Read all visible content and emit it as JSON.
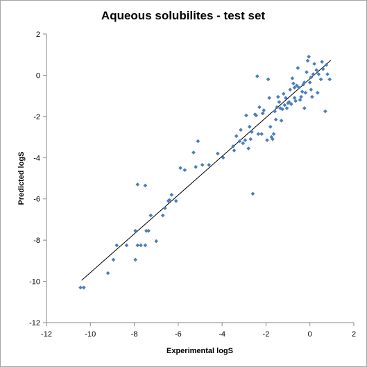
{
  "chart_data": {
    "type": "scatter",
    "title": "Aqueous solubilites - test set",
    "xlabel": "Experimental logS",
    "ylabel": "Predicted logS",
    "xlim": [
      -12,
      2
    ],
    "ylim": [
      -12,
      2
    ],
    "x_ticks": [
      -12,
      -10,
      -8,
      -6,
      -4,
      -2,
      0,
      2
    ],
    "y_ticks": [
      -12,
      -10,
      -8,
      -6,
      -4,
      -2,
      0,
      2
    ],
    "grid": false,
    "legend": "none",
    "marker_color": "#4a7ebb",
    "trendline": {
      "x": [
        -10.4,
        0.95
      ],
      "y": [
        -9.95,
        0.72
      ]
    },
    "points": [
      [
        -10.45,
        -10.3
      ],
      [
        -10.3,
        -10.3
      ],
      [
        -9.2,
        -9.6
      ],
      [
        -8.95,
        -8.95
      ],
      [
        -8.8,
        -8.25
      ],
      [
        -8.35,
        -8.25
      ],
      [
        -7.95,
        -7.55
      ],
      [
        -7.95,
        -8.95
      ],
      [
        -7.85,
        -8.25
      ],
      [
        -7.85,
        -5.3
      ],
      [
        -7.7,
        -8.25
      ],
      [
        -7.5,
        -8.25
      ],
      [
        -7.5,
        -5.35
      ],
      [
        -7.45,
        -7.55
      ],
      [
        -7.35,
        -7.55
      ],
      [
        -7.25,
        -6.8
      ],
      [
        -7.0,
        -8.05
      ],
      [
        -6.7,
        -6.8
      ],
      [
        -6.6,
        -6.45
      ],
      [
        -6.45,
        -6.1
      ],
      [
        -6.4,
        -6.05
      ],
      [
        -6.3,
        -5.8
      ],
      [
        -6.1,
        -6.1
      ],
      [
        -5.9,
        -4.5
      ],
      [
        -5.7,
        -4.6
      ],
      [
        -5.3,
        -3.75
      ],
      [
        -5.2,
        -4.45
      ],
      [
        -5.1,
        -3.2
      ],
      [
        -4.9,
        -4.35
      ],
      [
        -4.6,
        -4.35
      ],
      [
        -4.2,
        -3.8
      ],
      [
        -3.95,
        -4.0
      ],
      [
        -3.5,
        -3.45
      ],
      [
        -3.45,
        -3.65
      ],
      [
        -3.35,
        -2.95
      ],
      [
        -3.2,
        -3.2
      ],
      [
        -3.15,
        -2.65
      ],
      [
        -3.05,
        -3.3
      ],
      [
        -2.95,
        -3.15
      ],
      [
        -2.9,
        -1.95
      ],
      [
        -2.8,
        -3.55
      ],
      [
        -2.75,
        -2.5
      ],
      [
        -2.7,
        -3.1
      ],
      [
        -2.65,
        -2.75
      ],
      [
        -2.6,
        -5.75
      ],
      [
        -2.5,
        -1.9
      ],
      [
        -2.45,
        -1.95
      ],
      [
        -2.4,
        -0.05
      ],
      [
        -2.35,
        -2.85
      ],
      [
        -2.3,
        -1.55
      ],
      [
        -2.2,
        -2.85
      ],
      [
        -2.15,
        -1.85
      ],
      [
        -2.1,
        -1.7
      ],
      [
        -1.95,
        -3.15
      ],
      [
        -1.9,
        -0.2
      ],
      [
        -1.85,
        -1.1
      ],
      [
        -1.8,
        -2.5
      ],
      [
        -1.75,
        -3.0
      ],
      [
        -1.7,
        -3.1
      ],
      [
        -1.65,
        -2.85
      ],
      [
        -1.6,
        -1.75
      ],
      [
        -1.55,
        -2.15
      ],
      [
        -1.5,
        -1.55
      ],
      [
        -1.45,
        -1.05
      ],
      [
        -1.4,
        -1.3
      ],
      [
        -1.35,
        -1.6
      ],
      [
        -1.3,
        -2.2
      ],
      [
        -1.25,
        -1.65
      ],
      [
        -1.2,
        -0.9
      ],
      [
        -1.15,
        -1.45
      ],
      [
        -1.1,
        -1.1
      ],
      [
        -1.05,
        -1.6
      ],
      [
        -1.0,
        -1.35
      ],
      [
        -0.95,
        -1.3
      ],
      [
        -0.9,
        -0.7
      ],
      [
        -0.85,
        -1.4
      ],
      [
        -0.8,
        -0.15
      ],
      [
        -0.75,
        -0.4
      ],
      [
        -0.7,
        -1.1
      ],
      [
        -0.7,
        -0.6
      ],
      [
        -0.65,
        -1.25
      ],
      [
        -0.6,
        -0.5
      ],
      [
        -0.55,
        0.35
      ],
      [
        -0.5,
        -0.6
      ],
      [
        -0.45,
        -1.2
      ],
      [
        -0.4,
        -1.05
      ],
      [
        -0.35,
        -0.8
      ],
      [
        -0.3,
        -0.45
      ],
      [
        -0.25,
        -1.6
      ],
      [
        -0.25,
        -0.35
      ],
      [
        -0.2,
        -0.85
      ],
      [
        -0.15,
        0.15
      ],
      [
        -0.1,
        0.7
      ],
      [
        -0.05,
        0.9
      ],
      [
        0.0,
        -0.35
      ],
      [
        0.05,
        -0.7
      ],
      [
        0.05,
        -0.1
      ],
      [
        0.1,
        -1.05
      ],
      [
        0.15,
        0.05
      ],
      [
        0.2,
        0.55
      ],
      [
        0.3,
        0.25
      ],
      [
        0.35,
        -0.85
      ],
      [
        0.4,
        0.05
      ],
      [
        0.5,
        -0.2
      ],
      [
        0.55,
        0.65
      ],
      [
        0.6,
        0.3
      ],
      [
        0.7,
        -1.75
      ],
      [
        0.75,
        0.5
      ],
      [
        0.8,
        0.05
      ],
      [
        0.9,
        -0.2
      ]
    ]
  }
}
